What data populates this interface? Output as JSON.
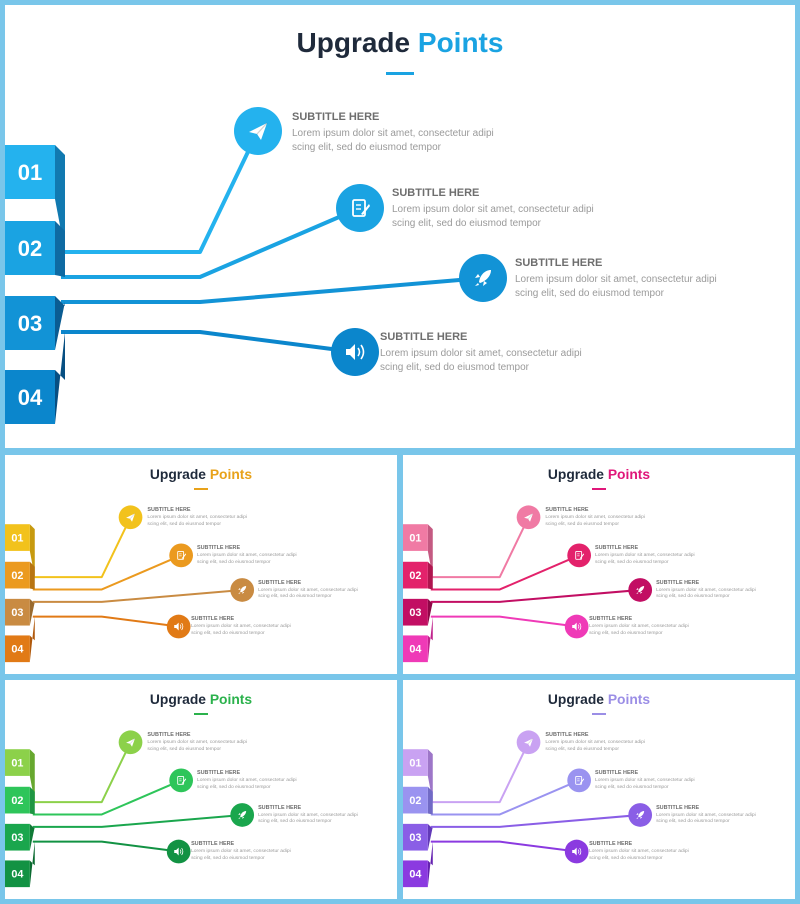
{
  "title_lead": "Upgrade",
  "title_accent": "Points",
  "steps": [
    {
      "number": "01",
      "icon": "paper-plane-icon",
      "subtitle": "SUBTITLE HERE",
      "line1": "Lorem ipsum dolor sit amet, consectetur adipi",
      "line2": "scing elit, sed do eiusmod tempor"
    },
    {
      "number": "02",
      "icon": "notepad-edit-icon",
      "subtitle": "SUBTITLE HERE",
      "line1": "Lorem ipsum dolor sit amet, consectetur adipi",
      "line2": "scing elit, sed do eiusmod tempor"
    },
    {
      "number": "03",
      "icon": "rocket-icon",
      "subtitle": "SUBTITLE HERE",
      "line1": "Lorem ipsum dolor sit amet, consectetur adipi",
      "line2": "scing elit, sed do eiusmod tempor"
    },
    {
      "number": "04",
      "icon": "speaker-icon",
      "subtitle": "SUBTITLE HERE",
      "line1": "Lorem ipsum dolor sit amet, consectetur adipi",
      "line2": "scing elit, sed do eiusmod tempor"
    }
  ],
  "variants": [
    {
      "name": "blue",
      "accent": "#1aa3e2",
      "colors": [
        "#24b2ee",
        "#1aa3e2",
        "#1293d6",
        "#0b86cc"
      ],
      "dark": [
        "#1179b0",
        "#0e6aa2",
        "#0a5c92",
        "#074f82"
      ]
    },
    {
      "name": "orange",
      "accent": "#e8a21a",
      "colors": [
        "#f2c21c",
        "#eb9a1f",
        "#c98b42",
        "#e17a16"
      ],
      "dark": [
        "#c79a0f",
        "#b87512",
        "#9a6a2e",
        "#b0590c"
      ]
    },
    {
      "name": "pink",
      "accent": "#e0177a",
      "colors": [
        "#f07aa4",
        "#e3226b",
        "#c20e63",
        "#ef3ab7"
      ],
      "dark": [
        "#c45a82",
        "#b0154f",
        "#8f0747",
        "#c0228c"
      ]
    },
    {
      "name": "green",
      "accent": "#2bb24c",
      "colors": [
        "#8cd14a",
        "#2ec55a",
        "#1aa64d",
        "#129243"
      ],
      "dark": [
        "#67a82f",
        "#1f9643",
        "#107a37",
        "#0a6a30"
      ]
    },
    {
      "name": "purple",
      "accent": "#9b8ee6",
      "colors": [
        "#c9a2f2",
        "#9a93f0",
        "#8a5ee6",
        "#8b3ae0"
      ],
      "dark": [
        "#9d76c8",
        "#716ac6",
        "#6239b8",
        "#6420b0"
      ]
    }
  ]
}
